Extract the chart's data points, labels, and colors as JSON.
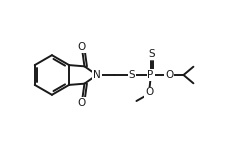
{
  "bg_color": "#ffffff",
  "line_color": "#1a1a1a",
  "lw": 1.4,
  "fs": 7.5,
  "fig_width": 2.5,
  "fig_height": 1.5,
  "dpi": 100,
  "xlim": [
    0,
    10
  ],
  "ylim": [
    0,
    6
  ]
}
